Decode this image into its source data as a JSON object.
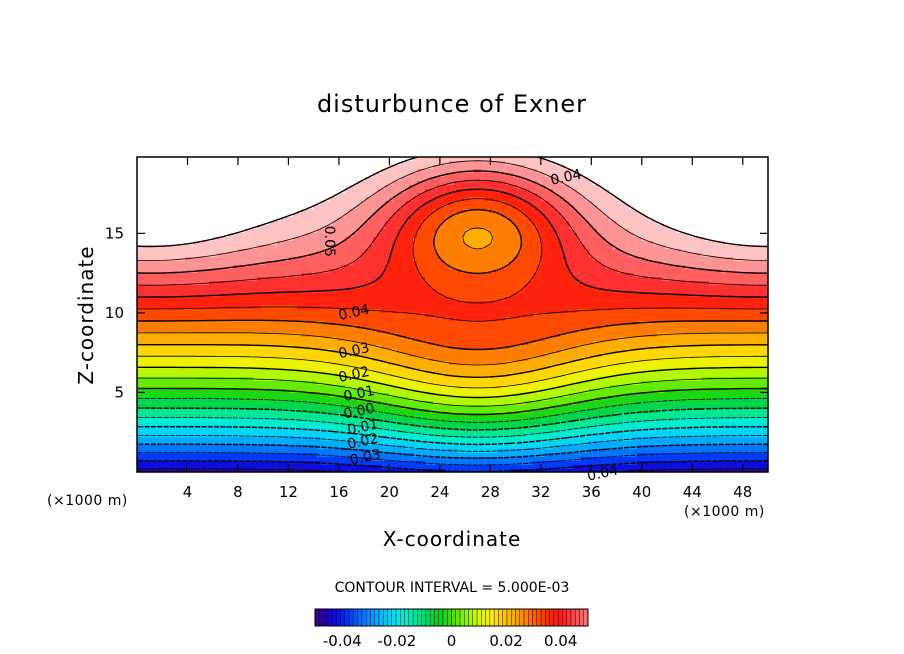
{
  "chart_data": {
    "type": "heatmap",
    "title": "disturbunce of Exner",
    "xlabel": "X-coordinate",
    "ylabel": "Z-coordinate",
    "x_unit": "(×1000 m)",
    "y_unit": "(×1000 m)",
    "xlim": [
      0,
      50
    ],
    "ylim": [
      0,
      19.8
    ],
    "xticks": [
      "4",
      "8",
      "12",
      "16",
      "20",
      "24",
      "28",
      "32",
      "36",
      "40",
      "44",
      "48"
    ],
    "xtick_values": [
      4,
      8,
      12,
      16,
      20,
      24,
      28,
      32,
      36,
      40,
      44,
      48
    ],
    "yticks": [
      "5",
      "10",
      "15"
    ],
    "ytick_values": [
      5,
      10,
      15
    ],
    "contour_interval_text": "CONTOUR INTERVAL = 5.000E-03",
    "contour_interval": 0.005,
    "contour_labels": [
      {
        "text": "0.04",
        "x": 34,
        "z": 18.5
      },
      {
        "text": "0.05",
        "x": 15.2,
        "z": 14.5,
        "rotate": 90
      },
      {
        "text": "0.04",
        "x": 17.2,
        "z": 10.0
      },
      {
        "text": "0.03",
        "x": 17.2,
        "z": 7.6
      },
      {
        "text": "0.02",
        "x": 17.2,
        "z": 6.1
      },
      {
        "text": "0.01",
        "x": 17.6,
        "z": 4.9
      },
      {
        "text": "0.00",
        "x": 17.6,
        "z": 3.8
      },
      {
        "text": "0.01",
        "x": 17.9,
        "z": 2.8
      },
      {
        "text": "0.02",
        "x": 17.9,
        "z": 1.9
      },
      {
        "text": "0.03",
        "x": 18.1,
        "z": 0.9
      },
      {
        "text": "0.04",
        "x": 36.9,
        "z": -0.1
      }
    ],
    "colorbar": {
      "range": [
        -0.05,
        0.05
      ],
      "ticks": [
        "-0.04",
        "-0.02",
        "0",
        "0.02",
        "0.04"
      ],
      "tick_values": [
        -0.04,
        -0.02,
        0,
        0.02,
        0.04
      ]
    },
    "field_description": "value increases with height from about -0.045 at the bottom to above 0.05 near the top; a ridge is centered at x≈27"
  }
}
